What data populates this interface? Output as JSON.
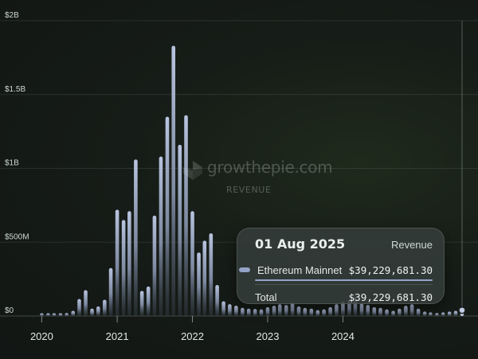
{
  "watermark": {
    "brand": "growthepie.com",
    "metric": "REVENUE"
  },
  "tooltip": {
    "date": "01 Aug 2025",
    "metric": "Revenue",
    "series_name": "Ethereum Mainnet",
    "series_value": "$39,229,681.30",
    "total_label": "Total",
    "total_value": "$39,229,681.30",
    "series_color": "#94a3c8"
  },
  "chart_data": {
    "type": "bar",
    "title": "",
    "xlabel": "",
    "ylabel": "",
    "ylim": [
      0,
      2000000000
    ],
    "y_ticks": [
      {
        "value": 0,
        "label": "$0"
      },
      {
        "value": 500000000,
        "label": "$500M"
      },
      {
        "value": 1000000000,
        "label": "$1B"
      },
      {
        "value": 1500000000,
        "label": "$1.5B"
      },
      {
        "value": 2000000000,
        "label": "$2B"
      }
    ],
    "x_ticks": [
      {
        "date": "2020-01-01",
        "label": "2020"
      },
      {
        "date": "2021-01-01",
        "label": "2021"
      },
      {
        "date": "2022-01-01",
        "label": "2022"
      },
      {
        "date": "2023-01-01",
        "label": "2023"
      },
      {
        "date": "2024-01-01",
        "label": "2024"
      }
    ],
    "x_range": [
      "2019-12-15",
      "2025-09-01"
    ],
    "grid": true,
    "legend": "none",
    "highlighted_x": "2025-08-01",
    "series": [
      {
        "name": "Ethereum Mainnet",
        "color": "#94a3c8",
        "x": [
          "2020-01-01",
          "2020-02-01",
          "2020-03-01",
          "2020-04-01",
          "2020-05-01",
          "2020-06-01",
          "2020-07-01",
          "2020-08-01",
          "2020-09-01",
          "2020-10-01",
          "2020-11-01",
          "2020-12-01",
          "2021-01-01",
          "2021-02-01",
          "2021-03-01",
          "2021-04-01",
          "2021-05-01",
          "2021-06-01",
          "2021-07-01",
          "2021-08-01",
          "2021-09-01",
          "2021-10-01",
          "2021-11-01",
          "2021-12-01",
          "2022-01-01",
          "2022-02-01",
          "2022-03-01",
          "2022-04-01",
          "2022-05-01",
          "2022-06-01",
          "2022-07-01",
          "2022-08-01",
          "2022-09-01",
          "2022-10-01",
          "2022-11-01",
          "2022-12-01",
          "2023-01-01",
          "2023-02-01",
          "2023-03-01",
          "2023-04-01",
          "2023-05-01",
          "2023-06-01",
          "2023-07-01",
          "2023-08-01",
          "2023-09-01",
          "2023-10-01",
          "2023-11-01",
          "2023-12-01",
          "2024-01-01",
          "2024-02-01",
          "2024-03-01",
          "2024-04-01",
          "2024-05-01",
          "2024-06-01",
          "2024-07-01",
          "2024-08-01",
          "2024-09-01",
          "2024-10-01",
          "2024-11-01",
          "2024-12-01",
          "2025-01-01",
          "2025-02-01",
          "2025-03-01",
          "2025-04-01",
          "2025-05-01",
          "2025-06-01",
          "2025-07-01",
          "2025-08-01"
        ],
        "values": [
          8000000,
          6000000,
          12000000,
          12000000,
          20000000,
          35000000,
          115000000,
          175000000,
          50000000,
          65000000,
          110000000,
          325000000,
          720000000,
          650000000,
          710000000,
          1060000000,
          170000000,
          200000000,
          680000000,
          1080000000,
          1350000000,
          1830000000,
          1160000000,
          1360000000,
          710000000,
          430000000,
          510000000,
          560000000,
          210000000,
          100000000,
          80000000,
          70000000,
          55000000,
          50000000,
          48000000,
          45000000,
          60000000,
          70000000,
          80000000,
          75000000,
          90000000,
          65000000,
          55000000,
          50000000,
          40000000,
          45000000,
          60000000,
          80000000,
          100000000,
          110000000,
          130000000,
          85000000,
          75000000,
          60000000,
          55000000,
          45000000,
          35000000,
          50000000,
          70000000,
          80000000,
          50000000,
          30000000,
          25000000,
          20000000,
          25000000,
          30000000,
          35000000,
          39229681.3
        ]
      }
    ]
  }
}
